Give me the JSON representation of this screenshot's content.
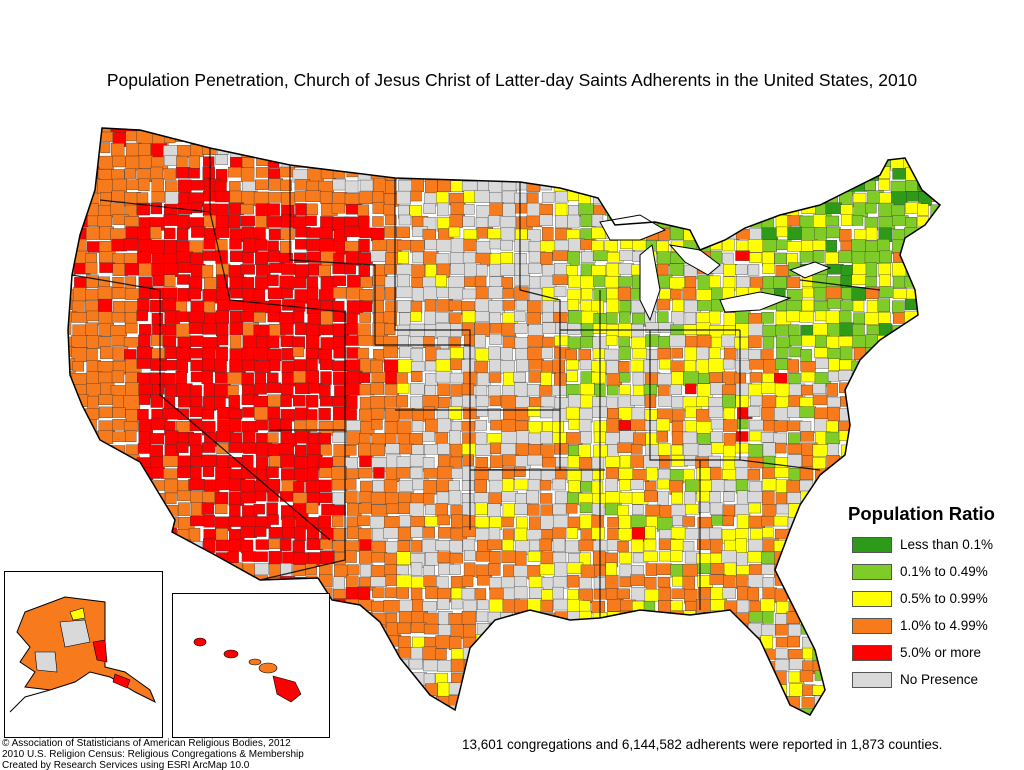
{
  "title": "Population Penetration, Church of Jesus Christ of Latter-day Saints Adherents in the United States, 2010",
  "legend": {
    "title": "Population Ratio",
    "items": [
      {
        "label": "Less than 0.1%",
        "color": "#2e9a1a"
      },
      {
        "label": "0.1% to 0.49%",
        "color": "#7fcc28"
      },
      {
        "label": "0.5% to 0.99%",
        "color": "#ffff00"
      },
      {
        "label": "1.0% to 4.99%",
        "color": "#f77a1c"
      },
      {
        "label": "5.0% or more",
        "color": "#ff0000"
      },
      {
        "label": "No Presence",
        "color": "#d9d9d9"
      }
    ]
  },
  "credits": [
    "© Association of Statisticians of American Religious Bodies, 2012",
    "2010 U.S. Religion Census: Religious Congregations & Membership",
    "Created by Research Services using ESRI ArcMap 10.0"
  ],
  "summary": "13,601 congregations and 6,144,582 adherents were reported in 1,873 counties."
}
